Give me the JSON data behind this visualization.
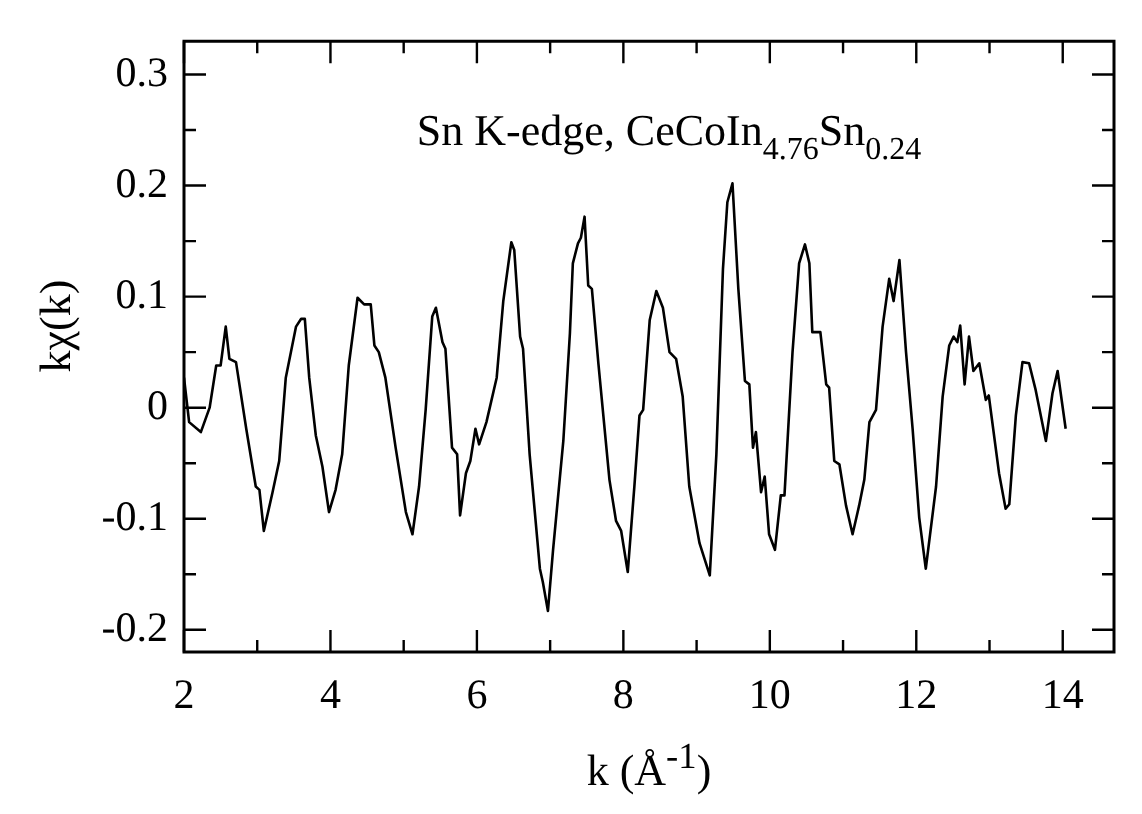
{
  "chart_data": {
    "type": "line",
    "title": "Sn K-edge, CeCoIn$_{4.76}$Sn$_{0.24}$",
    "xlabel": "k (Å$^{-1}$)",
    "ylabel": "kχ(k)",
    "x": [
      2.0,
      2.07,
      2.23,
      2.35,
      2.44,
      2.5,
      2.57,
      2.62,
      2.71,
      2.85,
      2.98,
      3.03,
      3.09,
      3.21,
      3.3,
      3.39,
      3.53,
      3.6,
      3.65,
      3.71,
      3.8,
      3.89,
      3.98,
      4.07,
      4.16,
      4.25,
      4.37,
      4.46,
      4.55,
      4.6,
      4.66,
      4.75,
      4.89,
      5.03,
      5.12,
      5.21,
      5.3,
      5.39,
      5.44,
      5.53,
      5.57,
      5.66,
      5.73,
      5.77,
      5.85,
      5.91,
      5.98,
      6.03,
      6.13,
      6.27,
      6.36,
      6.47,
      6.51,
      6.59,
      6.63,
      6.72,
      6.86,
      6.9,
      6.97,
      7.04,
      7.18,
      7.27,
      7.31,
      7.38,
      7.42,
      7.47,
      7.52,
      7.57,
      7.66,
      7.81,
      7.9,
      7.97,
      8.06,
      8.15,
      8.22,
      8.27,
      8.36,
      8.45,
      8.54,
      8.63,
      8.72,
      8.81,
      8.9,
      9.04,
      9.18,
      9.27,
      9.36,
      9.42,
      9.49,
      9.57,
      9.66,
      9.72,
      9.77,
      9.81,
      9.88,
      9.93,
      9.99,
      10.07,
      10.15,
      10.2,
      10.31,
      10.4,
      10.48,
      10.54,
      10.58,
      10.69,
      10.77,
      10.81,
      10.88,
      10.95,
      11.04,
      11.13,
      11.22,
      11.29,
      11.36,
      11.45,
      11.54,
      11.63,
      11.69,
      11.77,
      11.86,
      11.95,
      12.04,
      12.13,
      12.27,
      12.36,
      12.45,
      12.51,
      12.56,
      12.6,
      12.66,
      12.72,
      12.78,
      12.86,
      12.95,
      12.99,
      13.13,
      13.22,
      13.27,
      13.36,
      13.45,
      13.54,
      13.63,
      13.77,
      13.86,
      13.93,
      14.04
    ],
    "series": [
      {
        "color": "#000000",
        "values": [
          0.027,
          -0.013,
          -0.022,
          0,
          0.038,
          0.038,
          0.073,
          0.044,
          0.041,
          -0.019,
          -0.071,
          -0.074,
          -0.111,
          -0.076,
          -0.048,
          0.027,
          0.073,
          0.08,
          0.08,
          0.027,
          -0.025,
          -0.053,
          -0.094,
          -0.074,
          -0.042,
          0.038,
          0.099,
          0.093,
          0.093,
          0.056,
          0.05,
          0.027,
          -0.036,
          -0.094,
          -0.114,
          -0.071,
          -0.002,
          0.082,
          0.09,
          0.059,
          0.053,
          -0.036,
          -0.042,
          -0.097,
          -0.059,
          -0.048,
          -0.019,
          -0.033,
          -0.013,
          0.027,
          0.096,
          0.149,
          0.142,
          0.064,
          0.053,
          -0.042,
          -0.145,
          -0.157,
          -0.183,
          -0.128,
          -0.03,
          0.067,
          0.13,
          0.148,
          0.153,
          0.172,
          0.11,
          0.107,
          0.039,
          -0.065,
          -0.102,
          -0.111,
          -0.148,
          -0.071,
          -0.007,
          -0.002,
          0.079,
          0.105,
          0.09,
          0.05,
          0.044,
          0.01,
          -0.071,
          -0.122,
          -0.151,
          -0.042,
          0.125,
          0.185,
          0.202,
          0.107,
          0.024,
          0.021,
          -0.036,
          -0.022,
          -0.076,
          -0.062,
          -0.114,
          -0.128,
          -0.079,
          -0.079,
          0.05,
          0.13,
          0.147,
          0.13,
          0.068,
          0.068,
          0.021,
          0.018,
          -0.048,
          -0.051,
          -0.088,
          -0.114,
          -0.088,
          -0.065,
          -0.013,
          -0.002,
          0.073,
          0.116,
          0.096,
          0.133,
          0.05,
          -0.019,
          -0.099,
          -0.145,
          -0.071,
          0.01,
          0.056,
          0.064,
          0.059,
          0.074,
          0.021,
          0.064,
          0.033,
          0.04,
          0.007,
          0.011,
          -0.059,
          -0.091,
          -0.087,
          -0.007,
          0.041,
          0.04,
          0.016,
          -0.03,
          0.013,
          0.033,
          -0.019
        ]
      }
    ],
    "xlim": [
      2,
      14.7
    ],
    "xticks": [
      2,
      {
        "value": 3,
        "label": null
      },
      4,
      {
        "value": 5,
        "label": null
      },
      6,
      {
        "value": 7,
        "label": null
      },
      8,
      {
        "value": 9,
        "label": null
      },
      10,
      {
        "value": 11,
        "label": null
      },
      12,
      {
        "value": 13,
        "label": null
      },
      14
    ],
    "ylim": [
      -0.22,
      0.33
    ],
    "yticks": [
      {
        "value": -0.2,
        "label": "-0.2"
      },
      {
        "value": -0.15,
        "label": null
      },
      {
        "value": -0.1,
        "label": "-0.1"
      },
      {
        "value": -0.05,
        "label": null
      },
      0,
      {
        "value": 0.05,
        "label": null
      },
      0.1,
      {
        "value": 0.15,
        "label": null
      },
      0.2,
      {
        "value": 0.25,
        "label": null
      },
      0.3
    ],
    "grid": false,
    "legend": false,
    "marker": "none",
    "line_style": "solid"
  }
}
